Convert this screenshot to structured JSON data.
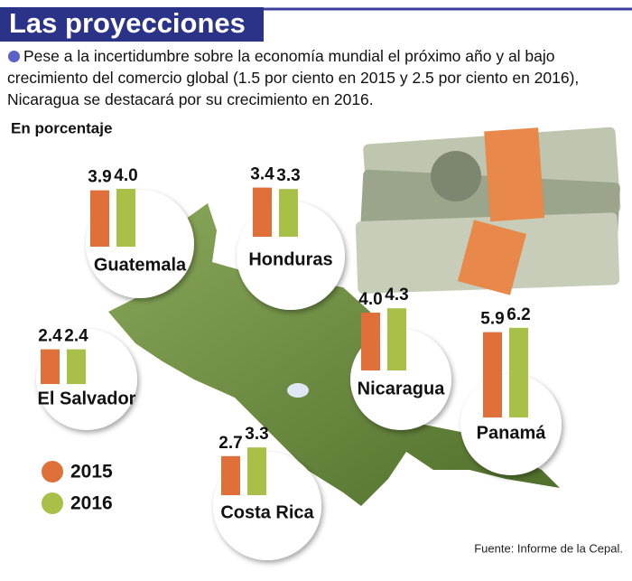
{
  "chart_data": {
    "type": "bar",
    "title": "Las proyecciones",
    "subtitle": "Pese a la incertidumbre sobre la economía mundial el próximo año y al bajo crecimiento del comercio global (1.5 por ciento en 2015 y 2.5 por ciento en 2016), Nicaragua se destacará por su crecimiento en 2016.",
    "y_label": "En porcentaje",
    "categories": [
      "Guatemala",
      "Honduras",
      "El Salvador",
      "Nicaragua",
      "Costa Rica",
      "Panamá"
    ],
    "series": [
      {
        "name": "2015",
        "color": "#e0703a",
        "values": [
          3.9,
          3.4,
          2.4,
          4.0,
          2.7,
          5.9
        ],
        "value_labels": [
          "3.9",
          "3.4",
          "2.4",
          "4.0",
          "2.7",
          "5.9"
        ]
      },
      {
        "name": "2016",
        "color": "#a8bf48",
        "values": [
          4.0,
          3.3,
          2.4,
          4.3,
          3.3,
          6.2
        ],
        "value_labels": [
          "4.0",
          "3.3",
          "2.4",
          "4.3",
          "3.3",
          "6.2"
        ]
      }
    ],
    "source": "Fuente: Informe de la Cepal."
  }
}
